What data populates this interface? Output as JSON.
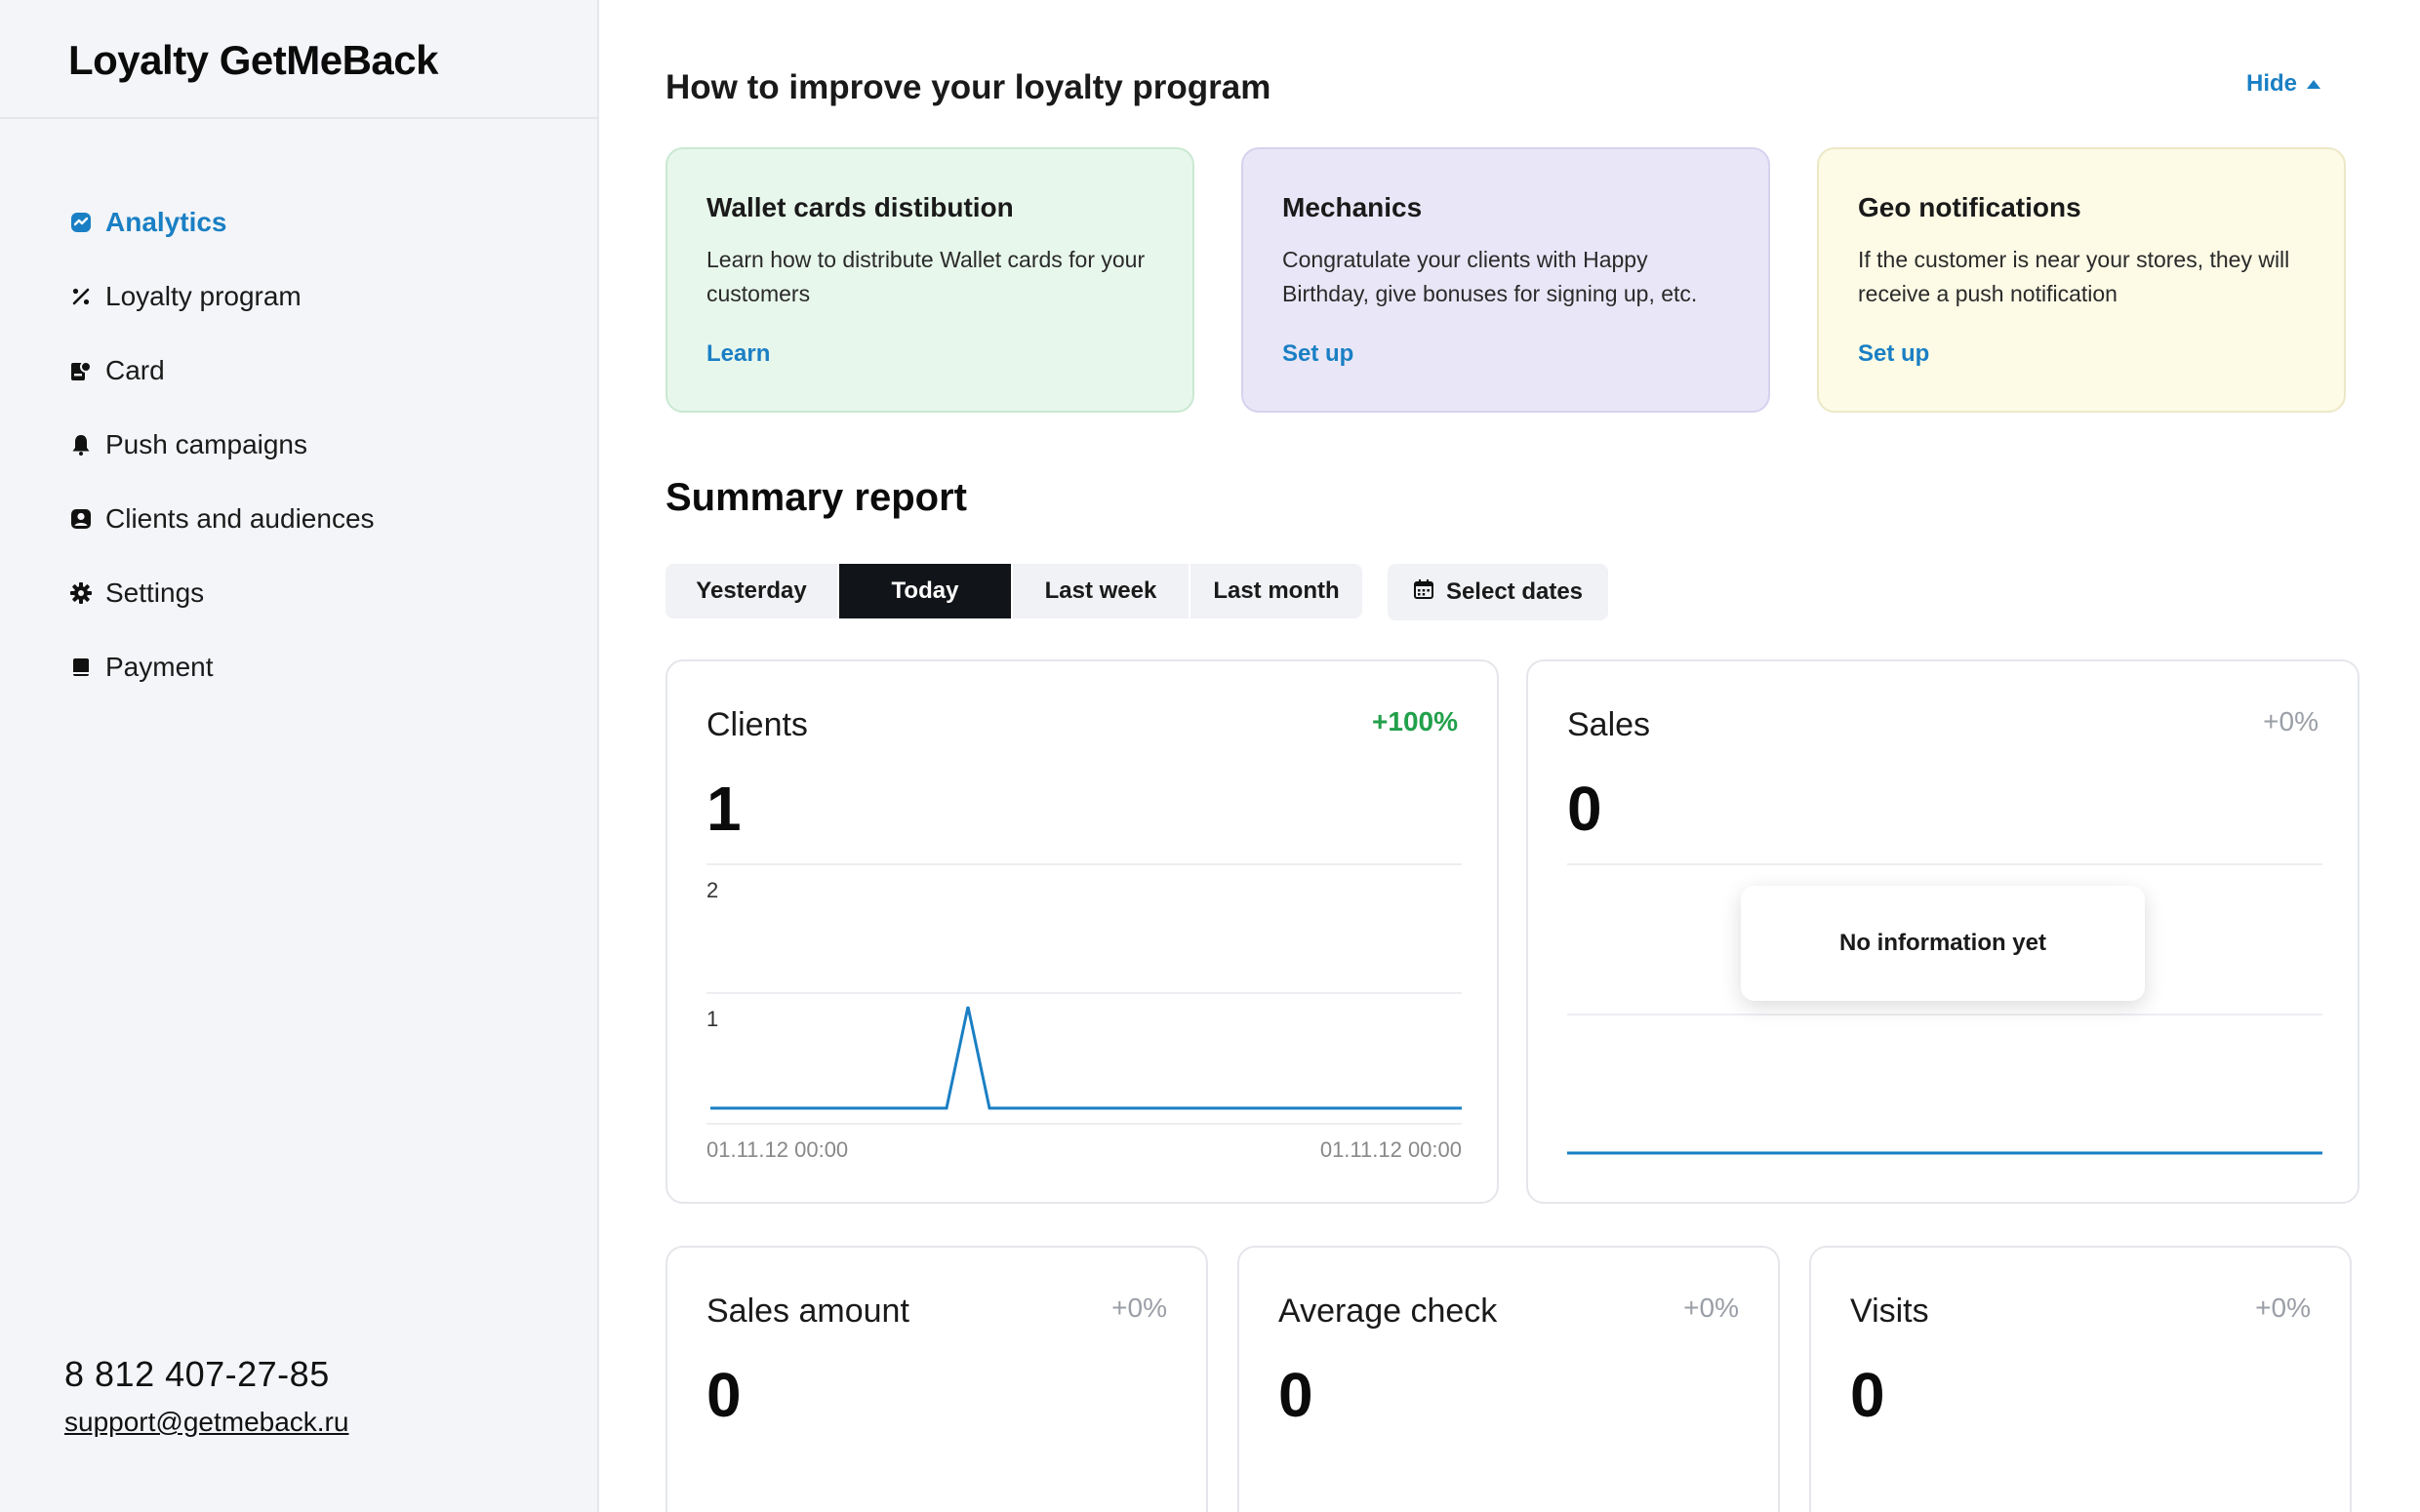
{
  "app": {
    "logo": "Loyalty GetMeBack"
  },
  "sidebar": {
    "items": [
      {
        "label": "Analytics",
        "icon": "analytics-icon",
        "active": true
      },
      {
        "label": "Loyalty program",
        "icon": "loyalty-icon",
        "active": false
      },
      {
        "label": "Card",
        "icon": "card-icon",
        "active": false
      },
      {
        "label": "Push campaigns",
        "icon": "bell-icon",
        "active": false
      },
      {
        "label": "Clients and audiences",
        "icon": "user-icon",
        "active": false
      },
      {
        "label": "Settings",
        "icon": "gear-icon",
        "active": false
      },
      {
        "label": "Payment",
        "icon": "payment-icon",
        "active": false
      }
    ],
    "contact": {
      "phone": "8 812 407-27-85",
      "email": "support@getmeback.ru"
    }
  },
  "tips": {
    "title": "How to improve your loyalty program",
    "hide_label": "Hide",
    "cards": [
      {
        "title": "Wallet cards distibution",
        "description": "Learn how to distribute Wallet cards for your customers",
        "link": "Learn",
        "bg": "#e8f7ec",
        "border": "#c9e8d2"
      },
      {
        "title": "Mechanics",
        "description": "Congratulate your clients with Happy Birthday, give bonuses for signing up, etc.",
        "link": "Set up",
        "bg": "#e9e7f7",
        "border": "#d5d2ee"
      },
      {
        "title": "Geo notifications",
        "description": "If the customer is near your stores, they will receive a push notification",
        "link": "Set up",
        "bg": "#fdfbe6",
        "border": "#ece8c6"
      }
    ]
  },
  "summary": {
    "title": "Summary report",
    "periods": [
      "Yesterday",
      "Today",
      "Last week",
      "Last month"
    ],
    "active_period": "Today",
    "select_dates_label": "Select dates"
  },
  "stats": {
    "clients": {
      "title": "Clients",
      "change": "+100%",
      "value": "1"
    },
    "sales": {
      "title": "Sales",
      "change": "+0%",
      "value": "0",
      "empty_message": "No information yet"
    },
    "sales_amount": {
      "title": "Sales amount",
      "change": "+0%",
      "value": "0"
    },
    "average_check": {
      "title": "Average check",
      "change": "+0%",
      "value": "0"
    },
    "visits": {
      "title": "Visits",
      "change": "+0%",
      "value": "0"
    }
  },
  "colors": {
    "accent": "#1a7fc4",
    "positive": "#22a04b",
    "line": "#1a7fc4"
  },
  "chart_data": [
    {
      "type": "line",
      "y_ticks": [
        "2",
        "1"
      ],
      "ylim": [
        0,
        2
      ],
      "x_tick_labels": [
        "01.11.12 00:00",
        "01.11.12 00:00"
      ],
      "series": [
        {
          "values": [
            0,
            0,
            0,
            0,
            0,
            0,
            0,
            0,
            0,
            0,
            0,
            0,
            1,
            0,
            0,
            0,
            0,
            0,
            0,
            0,
            0,
            0,
            0,
            0,
            0,
            0,
            0,
            0,
            0,
            0,
            0,
            0,
            0,
            0,
            0,
            0
          ]
        }
      ]
    },
    {
      "type": "line",
      "series": [
        {
          "values": [
            0,
            0
          ]
        }
      ]
    }
  ]
}
